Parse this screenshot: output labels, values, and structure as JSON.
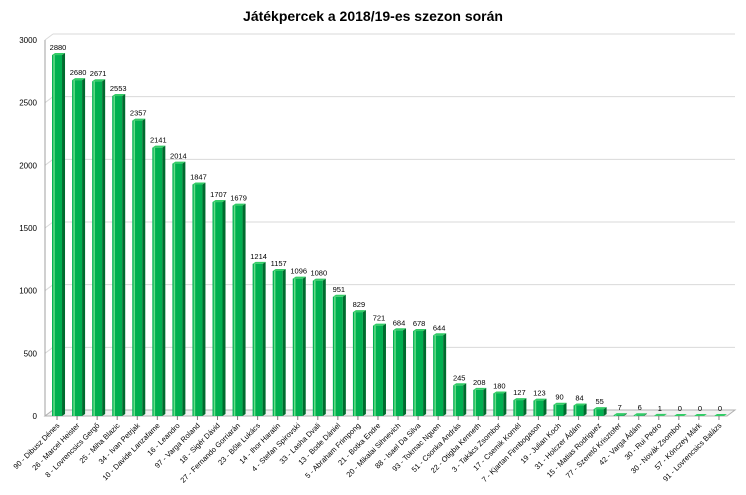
{
  "chart_data": {
    "type": "bar",
    "title": "Játékpercek a 2018/19-es  szezon során",
    "xlabel": "",
    "ylabel": "",
    "ylim": [
      0,
      3000
    ],
    "yticks": [
      0,
      500,
      1000,
      1500,
      2000,
      2500,
      3000
    ],
    "grid": true,
    "bar_color": "#00b050",
    "categories": [
      "90 - Dibusz Dénes",
      "26 - Marcel Heister",
      "8 - Lovrencsics Gergő",
      "25 - Miha Blazic",
      "34 - Ivan Petrjak",
      "10 - Davide Lanzafame",
      "16 - Leandro",
      "97 - Varga Roland",
      "18 - Sigér Dávid",
      "27 - Fernando Gorriarán",
      "23 - Bőle Lukács",
      "14 - Ihor Haratin",
      "4 - Stefan Spirovski",
      "33 - Lasha Dvali",
      "13 - Bode Dániel",
      "5 - Abraham Frimpong",
      "21 - Botka Endre",
      "20 - Mikalai Sihnevich",
      "88 - Isael Da Silva",
      "93 - Tokmac Nguen",
      "51 - Csonka András",
      "22 - Otigba Kenneth",
      "3 - Takács Zsombor",
      "17 - Csemik Kornél",
      "7 - Kjartan Finnbogason",
      "19 - Julian Koch",
      "31 - Holczer Ádám",
      "15 - Matias Rodriguez",
      "77 - Szerető Krisztofer",
      "42 - Varga Ádám",
      "30 - Rui Pedro",
      "30 - Novák Zsombor",
      "57 - Könczey Márk",
      "91 - Lovrencsics Balázs"
    ],
    "values": [
      2880,
      2680,
      2671,
      2553,
      2357,
      2141,
      2014,
      1847,
      1707,
      1679,
      1214,
      1157,
      1096,
      1080,
      951,
      829,
      721,
      684,
      678,
      644,
      245,
      208,
      180,
      127,
      123,
      90,
      84,
      55,
      7,
      6,
      1,
      0,
      0,
      0
    ]
  }
}
